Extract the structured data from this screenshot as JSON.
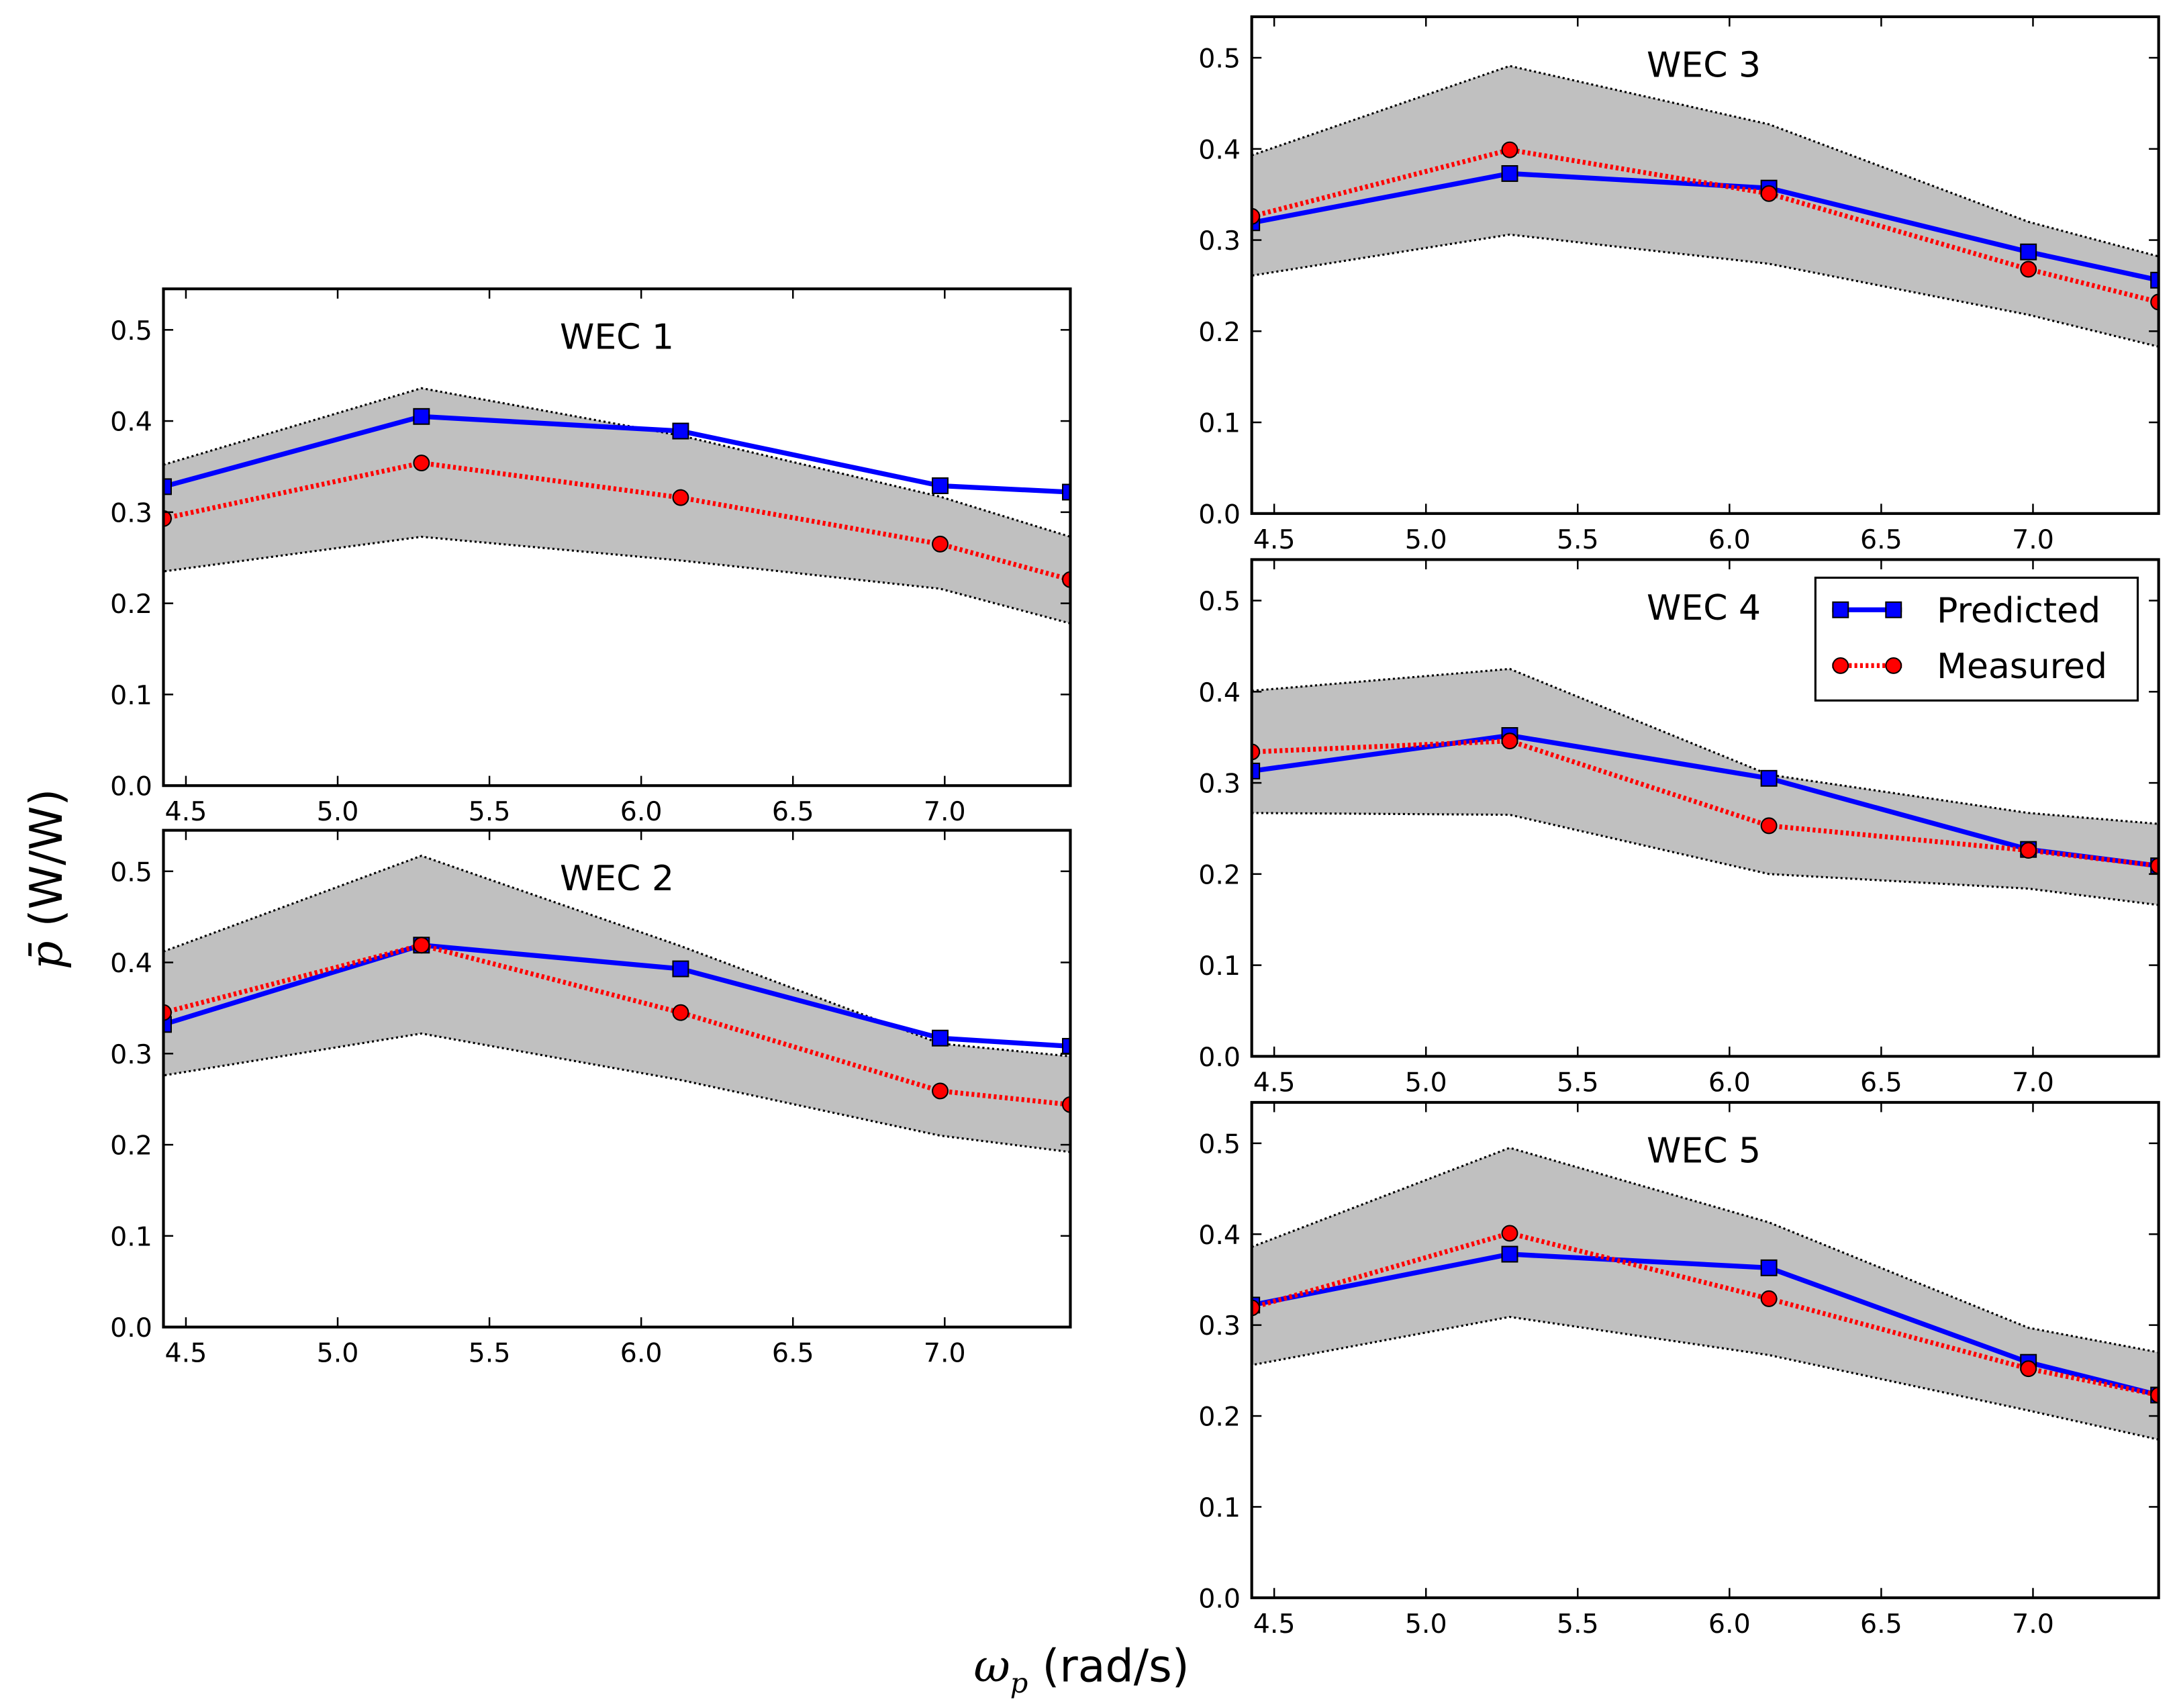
{
  "chart_data": {
    "type": "line",
    "xlabel": "ω",
    "xlabel_sub": "p",
    "xlabel_unit": " (rad/s)",
    "ylabel": "p̄",
    "ylabel_unit": " (W/W)",
    "xlim": [
      4.426,
      7.414
    ],
    "ylim": [
      0,
      0.545
    ],
    "xticks": [
      "4.5",
      "5.0",
      "5.5",
      "6.0",
      "6.5",
      "7.0"
    ],
    "xtick_values": [
      4.5,
      5.0,
      5.5,
      6.0,
      6.5,
      7.0
    ],
    "yticks": [
      "0.0",
      "0.1",
      "0.2",
      "0.3",
      "0.4",
      "0.5"
    ],
    "ytick_values": [
      0,
      0.1,
      0.2,
      0.3,
      0.4,
      0.5
    ],
    "x": [
      4.426,
      5.276,
      6.13,
      6.985,
      7.414
    ],
    "legend": {
      "placement": "top-right of WEC 4",
      "entries": [
        "Predicted",
        "Measured"
      ]
    },
    "colors": {
      "predicted": "#0000ff",
      "measured": "#ff0000",
      "band": "#c0c0c0"
    },
    "panels": [
      {
        "title": "WEC 1",
        "predicted": [
          0.328,
          0.405,
          0.389,
          0.329,
          0.322
        ],
        "measured": [
          0.293,
          0.354,
          0.316,
          0.265,
          0.226
        ],
        "band_upper": [
          0.352,
          0.436,
          0.384,
          0.317,
          0.273
        ],
        "band_lower": [
          0.235,
          0.273,
          0.247,
          0.216,
          0.178
        ]
      },
      {
        "title": "WEC 2",
        "predicted": [
          0.332,
          0.419,
          0.393,
          0.317,
          0.308
        ],
        "measured": [
          0.345,
          0.419,
          0.345,
          0.259,
          0.244
        ],
        "band_upper": [
          0.412,
          0.517,
          0.418,
          0.311,
          0.297
        ],
        "band_lower": [
          0.276,
          0.322,
          0.271,
          0.21,
          0.192
        ]
      },
      {
        "title": "WEC 3",
        "predicted": [
          0.319,
          0.373,
          0.357,
          0.287,
          0.256
        ],
        "measured": [
          0.326,
          0.399,
          0.351,
          0.268,
          0.232
        ],
        "band_upper": [
          0.393,
          0.491,
          0.427,
          0.32,
          0.282
        ],
        "band_lower": [
          0.261,
          0.306,
          0.274,
          0.218,
          0.183
        ]
      },
      {
        "title": "WEC 4",
        "predicted": [
          0.313,
          0.352,
          0.305,
          0.227,
          0.209
        ],
        "measured": [
          0.334,
          0.346,
          0.253,
          0.226,
          0.209
        ],
        "band_upper": [
          0.401,
          0.425,
          0.309,
          0.267,
          0.255
        ],
        "band_lower": [
          0.267,
          0.265,
          0.2,
          0.184,
          0.166
        ]
      },
      {
        "title": "WEC 5",
        "predicted": [
          0.322,
          0.378,
          0.363,
          0.259,
          0.223
        ],
        "measured": [
          0.319,
          0.401,
          0.329,
          0.252,
          0.223
        ],
        "band_upper": [
          0.386,
          0.495,
          0.413,
          0.297,
          0.27
        ],
        "band_lower": [
          0.256,
          0.309,
          0.267,
          0.206,
          0.174
        ]
      }
    ]
  }
}
